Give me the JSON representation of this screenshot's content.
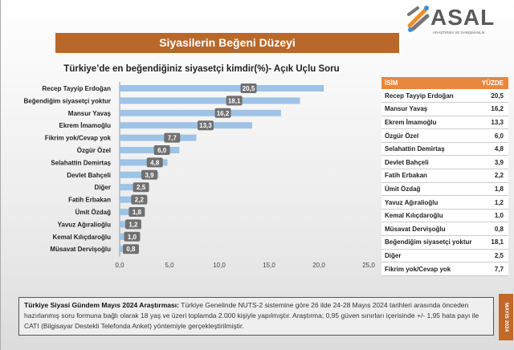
{
  "logo": {
    "text": "ASAL",
    "subtext": "ARAŞTIRMA VE DANIŞMANLIK"
  },
  "banner": "Siyasilerin Beğeni Düzeyi",
  "side_label": "MAYIS 2024",
  "note": {
    "bold": "Türkiye Siyasi Gündem Mayıs 2024 Araştırması:",
    "text": " Türkiye Genelinde NUTS-2 sistemine göre 26 ilde 24-28 Mayıs 2024 tarihleri arasında önceden hazırlanmış soru formuna bağlı olarak 18 yaş ve üzeri toplamda 2.000 kişiyle yapılmıştır. Araştırma; 0,95 güven sınırları içerisinde +/- 1,95 hata payı ile CATI (Bilgisayar Destekli Telefonda Anket) yöntemiyle gerçekleştirilmiştir."
  },
  "table": {
    "headers": [
      "İSİM",
      "YÜZDE"
    ],
    "rows": [
      [
        "Recep Tayyip Erdoğan",
        "20,5"
      ],
      [
        "Mansur Yavaş",
        "16,2"
      ],
      [
        "Ekrem İmamoğlu",
        "13,3"
      ],
      [
        "Özgür Özel",
        "6,0"
      ],
      [
        "Selahattin Demirtaş",
        "4,8"
      ],
      [
        "Devlet Bahçeli",
        "3,9"
      ],
      [
        "Fatih Erbakan",
        "2,2"
      ],
      [
        "Ümit Özdağ",
        "1,8"
      ],
      [
        "Yavuz Ağıralioğlu",
        "1,2"
      ],
      [
        "Kemal Kılıçdaroğlu",
        "1,0"
      ],
      [
        "Müsavat Dervişoğlu",
        "0,8"
      ],
      [
        "Beğendiğim siyasetçi yoktur",
        "18,1"
      ],
      [
        "Diğer",
        "2,5"
      ],
      [
        "Fikrim yok/Cevap yok",
        "7,7"
      ]
    ]
  },
  "chart_data": {
    "type": "bar",
    "orientation": "horizontal",
    "title": "Türkiye’de en beğendiğiniz siyasetçi kimdir(%)- Açık Uçlu Soru",
    "categories": [
      "Recep Tayyip Erdoğan",
      "Beğendiğim siyasetçi yoktur",
      "Mansur Yavaş",
      "Ekrem İmamoğlu",
      "Fikrim yok/Cevap yok",
      "Özgür Özel",
      "Selahattin Demirtaş",
      "Devlet Bahçeli",
      "Diğer",
      "Fatih Erbakan",
      "Ümit Özdağ",
      "Yavuz Ağıralioğlu",
      "Kemal Kılıçdaroğlu",
      "Müsavat Dervişoğlu"
    ],
    "values": [
      20.5,
      18.1,
      16.2,
      13.3,
      7.7,
      6.0,
      4.8,
      3.9,
      2.5,
      2.2,
      1.8,
      1.2,
      1.0,
      0.8
    ],
    "data_labels": [
      "20,5",
      "18,1",
      "16,2",
      "13,3",
      "7,7",
      "6,0",
      "4,8",
      "3,9",
      "2,5",
      "2,2",
      "1,8",
      "1,2",
      "1,0",
      "0,8"
    ],
    "xlim": [
      0,
      25
    ],
    "xticks": [
      "0,0",
      "5,0",
      "10,0",
      "15,0",
      "20,0",
      "25,0"
    ],
    "grid": false,
    "bar_color": "#9dc3e6",
    "label_bg": "#707070"
  }
}
